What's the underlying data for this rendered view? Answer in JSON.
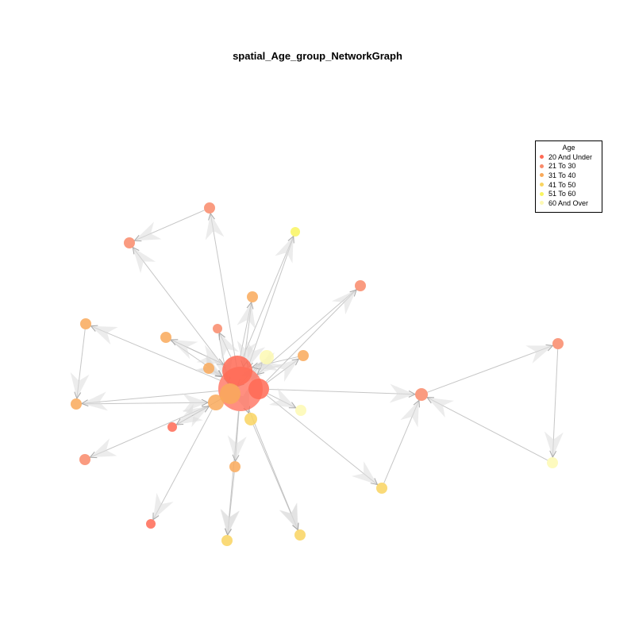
{
  "title": "spatial_Age_group_NetworkGraph",
  "legend": {
    "title": "Age",
    "items": [
      {
        "label": "20 And Under",
        "color": "#ff6a55"
      },
      {
        "label": "21 To 30",
        "color": "#f98a6a"
      },
      {
        "label": "31 To 40",
        "color": "#f9a95a"
      },
      {
        "label": "41 To 50",
        "color": "#f9d460"
      },
      {
        "label": "51 To 60",
        "color": "#f9f560"
      },
      {
        "label": "60 And Over",
        "color": "#fdf9b3"
      }
    ]
  },
  "colors": {
    "edge": "#b8b8b8",
    "arrowhead": "#dcdcdc"
  }
}
